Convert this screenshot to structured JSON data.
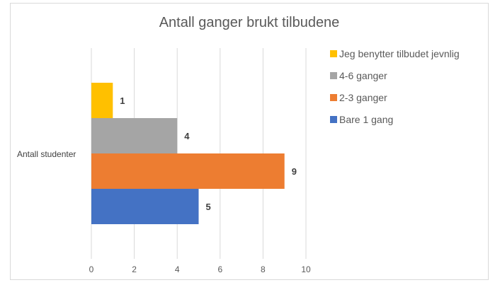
{
  "chart_data": {
    "type": "bar",
    "orientation": "horizontal",
    "title": "Antall ganger brukt tilbudene",
    "categories": [
      "Antall studenter"
    ],
    "series": [
      {
        "name": "Jeg benytter tilbudet jevnlig",
        "values": [
          1
        ],
        "color": "#FFC000"
      },
      {
        "name": "4-6 ganger",
        "values": [
          4
        ],
        "color": "#A5A5A5"
      },
      {
        "name": "2-3 ganger",
        "values": [
          9
        ],
        "color": "#ED7D31"
      },
      {
        "name": "Bare 1 gang",
        "values": [
          5
        ],
        "color": "#4472C4"
      }
    ],
    "xlim": [
      0,
      10
    ],
    "xticks": [
      "0",
      "2",
      "4",
      "6",
      "8",
      "10"
    ],
    "grid": true,
    "legend": "right"
  }
}
